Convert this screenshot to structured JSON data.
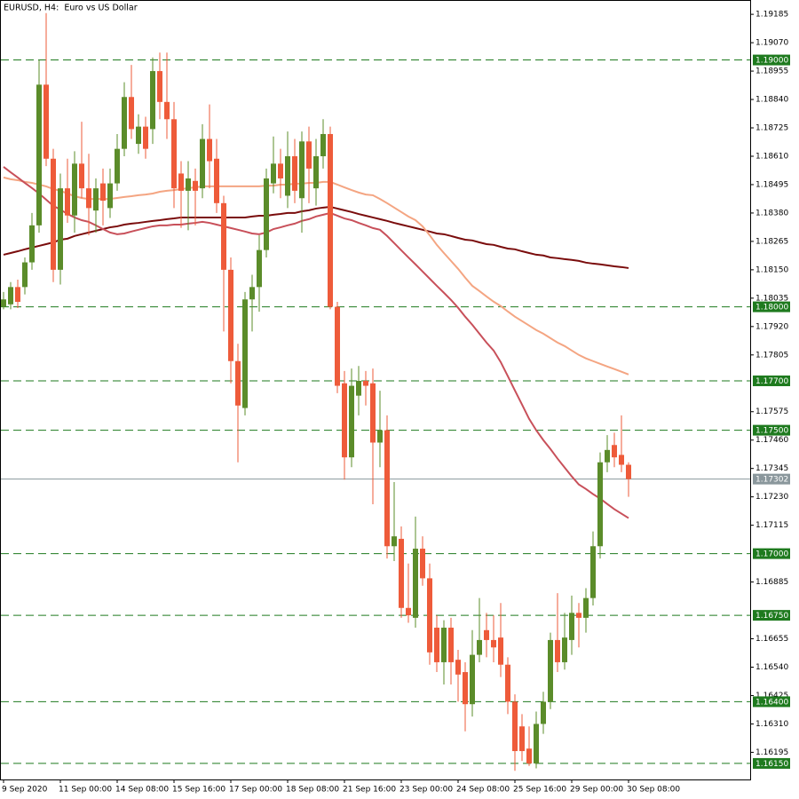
{
  "chart_data": {
    "type": "candlestick",
    "title": "EURUSD, H4:  Euro vs US Dollar",
    "categories": [
      "9 Sep 2020",
      null,
      null,
      null,
      null,
      null,
      null,
      null,
      "11 Sep 00:00",
      null,
      null,
      null,
      null,
      null,
      null,
      null,
      "14 Sep 08:00",
      null,
      null,
      null,
      null,
      null,
      null,
      null,
      "15 Sep 16:00",
      null,
      null,
      null,
      null,
      null,
      null,
      null,
      "17 Sep 00:00",
      null,
      null,
      null,
      null,
      null,
      null,
      null,
      "18 Sep 08:00",
      null,
      null,
      null,
      null,
      null,
      null,
      null,
      "21 Sep 16:00",
      null,
      null,
      null,
      null,
      null,
      null,
      null,
      "23 Sep 00:00",
      null,
      null,
      null,
      null,
      null,
      null,
      null,
      "24 Sep 08:00",
      null,
      null,
      null,
      null,
      null,
      null,
      null,
      "25 Sep 16:00",
      null,
      null,
      null,
      null,
      null,
      null,
      null,
      "29 Sep 00:00",
      null,
      null,
      null,
      null,
      null,
      null,
      null,
      "30 Sep 08:00"
    ],
    "open": [
      1.18,
      1.1801,
      1.1808,
      1.1808,
      1.1818,
      1.1833,
      1.189,
      1.186,
      1.1815,
      1.1848,
      1.1837,
      1.1858,
      1.1848,
      1.1839,
      1.185,
      1.184,
      1.185,
      1.1864,
      1.1885,
      1.1866,
      1.1873,
      1.1872,
      1.18955,
      1.1883,
      1.1876,
      1.1854,
      1.1847,
      1.1851,
      1.1848,
      1.1868,
      1.186,
      1.1842,
      1.1815,
      1.1778,
      1.1759,
      1.1803,
      1.1808,
      1.1823,
      1.185,
      1.1858,
      1.1845,
      1.1861,
      1.1844,
      1.1867,
      1.1848,
      1.1861,
      1.187,
      1.18,
      1.1769,
      1.1739,
      1.1764,
      1.177,
      1.1769,
      1.1745,
      1.175,
      1.1703,
      1.1706,
      1.1678,
      1.1674,
      1.1702,
      1.169,
      1.167,
      1.1656,
      1.167,
      1.1657,
      1.1652,
      1.1639,
      1.1659,
      1.1669,
      1.1665,
      1.1666,
      1.1655,
      1.164,
      1.163,
      1.1621,
      1.1615,
      1.1631,
      1.164,
      1.1665,
      1.1656,
      1.1665,
      1.1676,
      1.1674,
      1.1682,
      1.1703,
      1.1737,
      1.1744,
      1.174,
      1.1736
    ],
    "high": [
      1.1806,
      1.181,
      1.1811,
      1.182,
      1.1838,
      1.19,
      1.1919,
      1.1864,
      1.1854,
      1.186,
      1.1863,
      1.1875,
      1.1862,
      1.1852,
      1.1856,
      1.1856,
      1.187,
      1.1891,
      1.1898,
      1.1878,
      1.1877,
      1.1901,
      1.1903,
      1.1903,
      1.1883,
      1.1859,
      1.1859,
      1.1856,
      1.1874,
      1.1882,
      1.1868,
      1.1845,
      1.182,
      1.1785,
      1.1806,
      1.1813,
      1.1829,
      1.1856,
      1.1869,
      1.1864,
      1.1871,
      1.1868,
      1.1871,
      1.1873,
      1.1868,
      1.1876,
      1.1873,
      1.1802,
      1.1774,
      1.1775,
      1.1776,
      1.1774,
      1.1775,
      1.1766,
      1.1756,
      1.1729,
      1.1711,
      1.1696,
      1.1715,
      1.1707,
      1.1696,
      1.1675,
      1.1673,
      1.1674,
      1.1661,
      1.1656,
      1.1669,
      1.1682,
      1.1676,
      1.1675,
      1.168,
      1.1658,
      1.1643,
      1.1635,
      1.163,
      1.1636,
      1.1644,
      1.1668,
      1.1684,
      1.1676,
      1.1683,
      1.168,
      1.1686,
      1.1709,
      1.1741,
      1.1748,
      1.1749,
      1.1756,
      1.1737
    ],
    "low": [
      1.1799,
      1.1799,
      1.17995,
      1.1805,
      1.1815,
      1.183,
      1.1857,
      1.181,
      1.1809,
      1.1834,
      1.183,
      1.1844,
      1.1829,
      1.183,
      1.1833,
      1.1836,
      1.1847,
      1.1861,
      1.1868,
      1.1862,
      1.186,
      1.1866,
      1.1876,
      1.1868,
      1.184,
      1.1832,
      1.1831,
      1.1833,
      1.1844,
      1.1848,
      1.1838,
      1.179,
      1.1769,
      1.1737,
      1.1756,
      1.179,
      1.1798,
      1.182,
      1.1846,
      1.1844,
      1.184,
      1.1842,
      1.183,
      1.1842,
      1.1841,
      1.1856,
      1.1799,
      1.1765,
      1.173,
      1.1735,
      1.1756,
      1.176,
      1.172,
      1.1735,
      1.1698,
      1.1697,
      1.1674,
      1.1672,
      1.167,
      1.1687,
      1.1655,
      1.1652,
      1.1647,
      1.1647,
      1.164,
      1.1628,
      1.1634,
      1.1656,
      1.1658,
      1.1656,
      1.165,
      1.1635,
      1.1612,
      1.1616,
      1.1614,
      1.1613,
      1.1627,
      1.1637,
      1.1652,
      1.1653,
      1.1659,
      1.1662,
      1.1668,
      1.1679,
      1.1698,
      1.1733,
      1.1735,
      1.1733,
      1.1723
    ],
    "close": [
      1.1803,
      1.1808,
      1.1802,
      1.1818,
      1.1833,
      1.189,
      1.186,
      1.1815,
      1.1848,
      1.1837,
      1.1858,
      1.1848,
      1.184,
      1.1848,
      1.1843,
      1.185,
      1.1864,
      1.1885,
      1.1872,
      1.1873,
      1.1864,
      1.18955,
      1.1883,
      1.1876,
      1.1848,
      1.1847,
      1.1852,
      1.1847,
      1.1868,
      1.1859,
      1.1842,
      1.1815,
      1.1778,
      1.176,
      1.1803,
      1.1808,
      1.1823,
      1.1852,
      1.1858,
      1.1852,
      1.1861,
      1.1847,
      1.1867,
      1.1856,
      1.1861,
      1.187,
      1.18,
      1.1768,
      1.1739,
      1.1768,
      1.177,
      1.1768,
      1.1745,
      1.175,
      1.1703,
      1.1707,
      1.1678,
      1.1675,
      1.1702,
      1.169,
      1.166,
      1.1656,
      1.167,
      1.1656,
      1.1651,
      1.1639,
      1.1659,
      1.1665,
      1.1665,
      1.1662,
      1.1655,
      1.164,
      1.162,
      1.162,
      1.1615,
      1.1631,
      1.164,
      1.1665,
      1.1656,
      1.1666,
      1.1676,
      1.1674,
      1.1682,
      1.1703,
      1.1737,
      1.1742,
      1.1739,
      1.1736,
      1.17302
    ],
    "up_color": "#5b8c2a",
    "down_color": "#ee5b3a",
    "overlays": [
      {
        "color": "#7a0c0c",
        "values": [
          1.18211,
          1.18218,
          1.18225,
          1.18233,
          1.1824,
          1.18247,
          1.18254,
          1.18261,
          1.18272,
          1.18276,
          1.18287,
          1.18294,
          1.18301,
          1.18308,
          1.18315,
          1.18322,
          1.18326,
          1.18333,
          1.18337,
          1.1834,
          1.18344,
          1.18348,
          1.18351,
          1.18355,
          1.18358,
          1.18362,
          1.18362,
          1.18362,
          1.18362,
          1.18362,
          1.18362,
          1.18362,
          1.18362,
          1.18362,
          1.18362,
          1.18366,
          1.18369,
          1.18369,
          1.18373,
          1.18376,
          1.1838,
          1.1838,
          1.18387,
          1.18391,
          1.18398,
          1.18402,
          1.18405,
          1.18398,
          1.18391,
          1.18384,
          1.18376,
          1.18369,
          1.18362,
          1.18355,
          1.18348,
          1.1834,
          1.18333,
          1.18326,
          1.18319,
          1.18312,
          1.18305,
          1.18297,
          1.18294,
          1.18287,
          1.18279,
          1.18272,
          1.18269,
          1.18261,
          1.18254,
          1.18251,
          1.18243,
          1.18236,
          1.18233,
          1.18225,
          1.18218,
          1.18211,
          1.18208,
          1.182,
          1.18197,
          1.18193,
          1.1819,
          1.18186,
          1.18179,
          1.18175,
          1.18172,
          1.18168,
          1.18164,
          1.18161,
          1.18157
        ]
      },
      {
        "color": "#f4a582",
        "values": [
          1.18524,
          1.18517,
          1.18513,
          1.18506,
          1.18502,
          1.18495,
          1.18488,
          1.18477,
          1.1847,
          1.18459,
          1.18448,
          1.18441,
          1.18437,
          1.18437,
          1.18437,
          1.18437,
          1.18441,
          1.18445,
          1.18448,
          1.18452,
          1.18455,
          1.18459,
          1.18466,
          1.1847,
          1.18473,
          1.18477,
          1.18481,
          1.18484,
          1.18488,
          1.18488,
          1.18488,
          1.18488,
          1.18488,
          1.18488,
          1.18488,
          1.18488,
          1.18488,
          1.18491,
          1.18491,
          1.18495,
          1.18495,
          1.18499,
          1.18499,
          1.18502,
          1.18502,
          1.18506,
          1.18506,
          1.18495,
          1.18484,
          1.18473,
          1.18463,
          1.18455,
          1.18452,
          1.18437,
          1.1842,
          1.18402,
          1.18384,
          1.18366,
          1.18351,
          1.18326,
          1.1829,
          1.18251,
          1.18218,
          1.18186,
          1.18154,
          1.18118,
          1.18085,
          1.18064,
          1.18042,
          1.18021,
          1.18003,
          1.17981,
          1.1796,
          1.17942,
          1.17924,
          1.17906,
          1.17891,
          1.17873,
          1.17855,
          1.17841,
          1.17823,
          1.17805,
          1.17791,
          1.1778,
          1.17769,
          1.17758,
          1.17748,
          1.17737,
          1.17726
        ]
      },
      {
        "color": "#c8505a",
        "values": [
          1.18567,
          1.18545,
          1.18524,
          1.18502,
          1.18481,
          1.18459,
          1.18434,
          1.18409,
          1.18394,
          1.18376,
          1.18362,
          1.18351,
          1.18344,
          1.1833,
          1.18315,
          1.18301,
          1.18294,
          1.18297,
          1.18305,
          1.18312,
          1.18319,
          1.18326,
          1.1833,
          1.1833,
          1.18333,
          1.18333,
          1.18337,
          1.1834,
          1.18344,
          1.1834,
          1.18333,
          1.18326,
          1.18319,
          1.18312,
          1.18305,
          1.18297,
          1.18294,
          1.18301,
          1.18315,
          1.18322,
          1.1833,
          1.18337,
          1.18348,
          1.18355,
          1.18366,
          1.18373,
          1.1838,
          1.18369,
          1.18358,
          1.18351,
          1.1834,
          1.1833,
          1.18319,
          1.18312,
          1.18287,
          1.18258,
          1.18229,
          1.182,
          1.18172,
          1.18143,
          1.18114,
          1.18085,
          1.18057,
          1.18028,
          1.17996,
          1.1796,
          1.17927,
          1.17891,
          1.17855,
          1.17823,
          1.17776,
          1.17719,
          1.17661,
          1.17604,
          1.17546,
          1.175,
          1.1746,
          1.17424,
          1.17385,
          1.17349,
          1.17313,
          1.1728,
          1.17262,
          1.17241,
          1.17223,
          1.17201,
          1.1718,
          1.17162,
          1.17144
        ]
      }
    ],
    "ylim": [
      1.16085,
      1.19243
    ],
    "yticks": [
      1.19185,
      {
        "value": 1.1907,
        "label": "1.19070"
      },
      1.18955,
      {
        "value": 1.1884,
        "label": "1.18840"
      },
      1.18725,
      {
        "value": 1.1861,
        "label": "1.18610"
      },
      1.18495,
      {
        "value": 1.1838,
        "label": "1.18380"
      },
      1.18265,
      {
        "value": 1.1815,
        "label": "1.18150"
      },
      1.18035,
      {
        "value": 1.1792,
        "label": "1.17920"
      },
      1.17805,
      1.17575,
      {
        "value": 1.1746,
        "label": "1.17460"
      },
      1.17345,
      {
        "value": 1.1723,
        "label": "1.17230"
      },
      1.17115,
      1.16885,
      1.16655,
      {
        "value": 1.1654,
        "label": "1.16540"
      },
      1.16425,
      {
        "value": 1.1631,
        "label": "1.16310"
      },
      1.16195
    ],
    "levels": [
      {
        "value": 1.19,
        "label": "1.19000"
      },
      {
        "value": 1.18,
        "label": "1.18000"
      },
      {
        "value": 1.177,
        "label": "1.17700"
      },
      {
        "value": 1.175,
        "label": "1.17500"
      },
      {
        "value": 1.17,
        "label": "1.17000"
      },
      {
        "value": 1.1675,
        "label": "1.16750"
      },
      {
        "value": 1.164,
        "label": "1.16400"
      },
      {
        "value": 1.1615,
        "label": "1.16150"
      }
    ],
    "level_color": "#1e7a1e",
    "last_price": 1.17302,
    "last_price_color": "#8a979c"
  }
}
